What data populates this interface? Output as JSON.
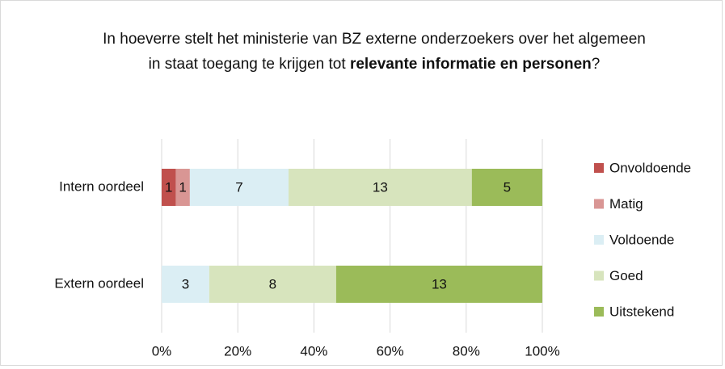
{
  "chart_data": {
    "type": "bar",
    "orientation": "horizontal",
    "stacking": "percent",
    "title": [
      "In hoeverre stelt het ministerie van BZ externe onderzoekers over het algemeen in staat toegang te krijgen tot ",
      "relevante informatie en personen",
      "?"
    ],
    "title_bold": [
      false,
      true,
      false
    ],
    "categories": [
      "Intern oordeel",
      "Extern oordeel"
    ],
    "series": [
      {
        "name": "Onvoldoende",
        "color": "#c0504d",
        "values": [
          1,
          null
        ]
      },
      {
        "name": "Matig",
        "color": "#d99694",
        "values": [
          1,
          null
        ]
      },
      {
        "name": "Voldoende",
        "color": "#dbeef4",
        "values": [
          7,
          3
        ]
      },
      {
        "name": "Goed",
        "color": "#d7e4bd",
        "values": [
          13,
          8
        ]
      },
      {
        "name": "Uitstekend",
        "color": "#9bbb59",
        "values": [
          5,
          13
        ]
      }
    ],
    "xlim": [
      0,
      100
    ],
    "xticks": [
      {
        "value": 0,
        "label": "0%"
      },
      {
        "value": 20,
        "label": "20%"
      },
      {
        "value": 40,
        "label": "40%"
      },
      {
        "value": 60,
        "label": "60%"
      },
      {
        "value": 80,
        "label": "80%"
      },
      {
        "value": 100,
        "label": "100%"
      }
    ],
    "grid": true,
    "legend": "right"
  }
}
